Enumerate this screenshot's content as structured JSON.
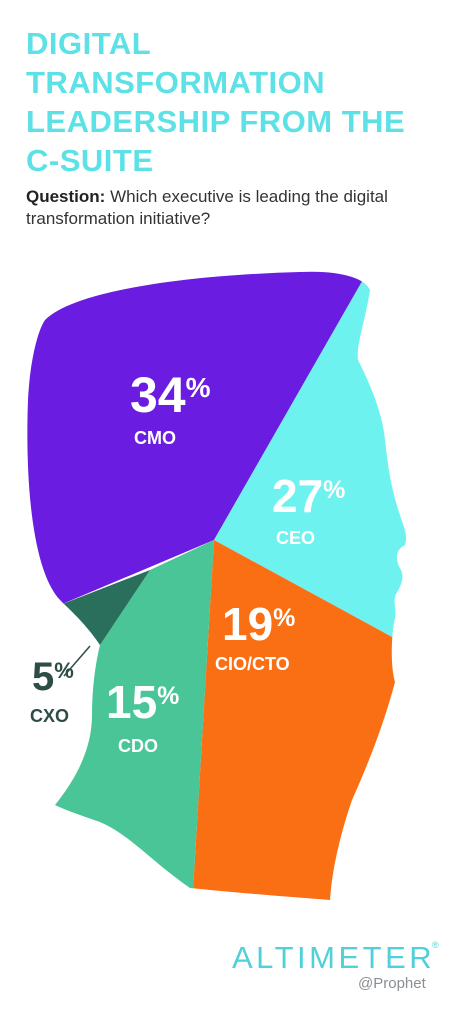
{
  "title_lines": [
    "DIGITAL",
    "TRANSFORMATION",
    "LEADERSHIP FROM THE",
    "C-SUITE"
  ],
  "question": {
    "label": "Question:",
    "text": "Which executive is leading the digital transformation initiative?"
  },
  "chart_data": {
    "type": "pie",
    "title": "DIGITAL TRANSFORMATION LEADERSHIP FROM THE C-SUITE",
    "categories": [
      "CMO",
      "CEO",
      "CIO/CTO",
      "CDO",
      "CXO"
    ],
    "values": [
      34,
      27,
      19,
      15,
      5
    ],
    "value_labels": [
      "34%",
      "27%",
      "19%",
      "15%",
      "5%"
    ],
    "colors": [
      "#6a1de0",
      "#6ef2ef",
      "#fa6e14",
      "#49c597",
      "#2a6e5c"
    ],
    "shape": "human head silhouette"
  },
  "brand": {
    "name": "ALTIMETER",
    "registered": "®",
    "sub": "@Prophet",
    "color": "#4fd0da"
  }
}
